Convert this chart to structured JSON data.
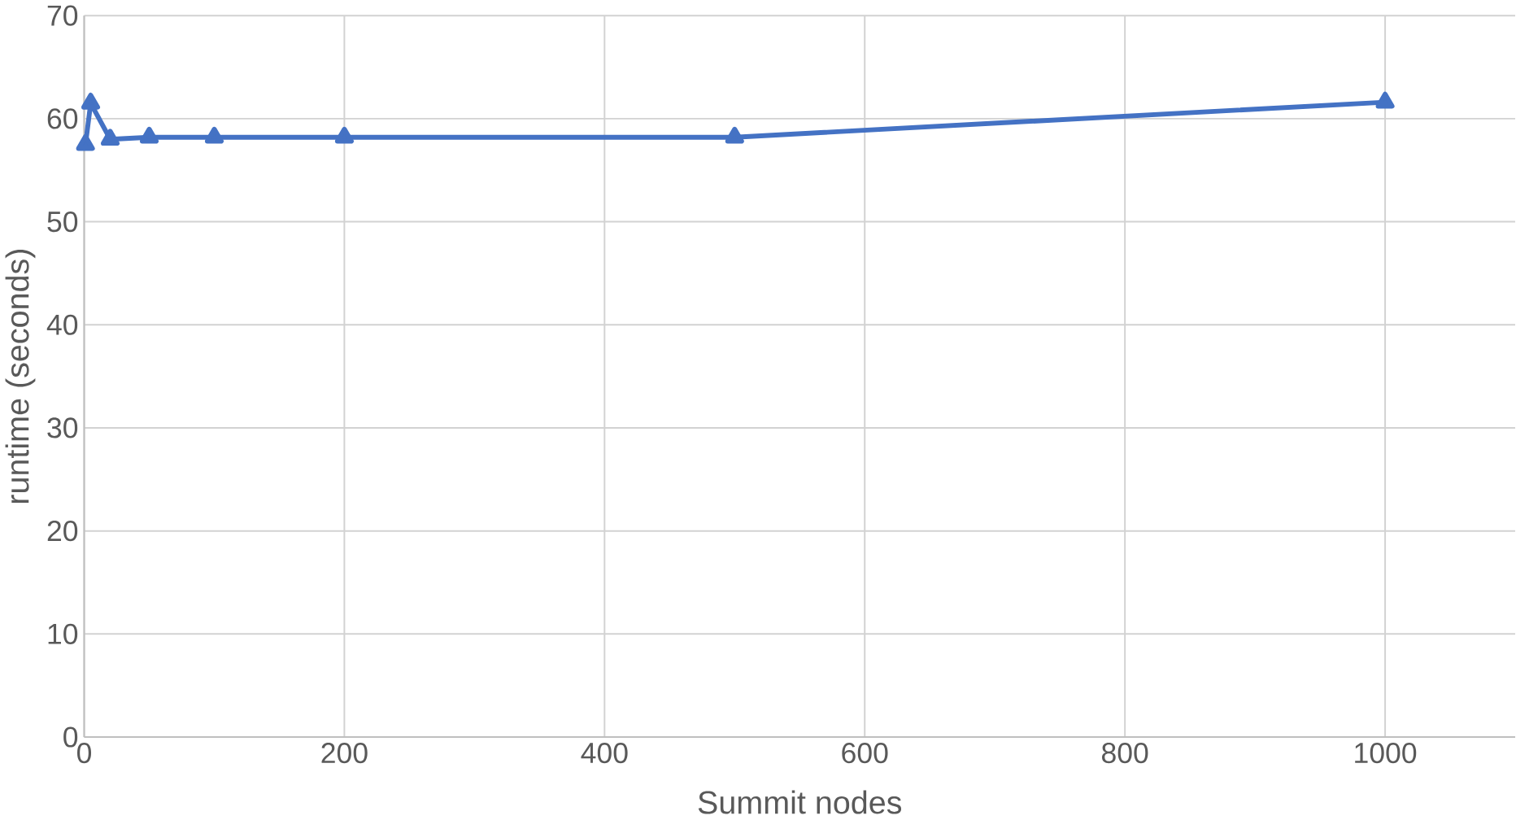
{
  "chart_data": {
    "type": "line",
    "xlabel": "Summit nodes",
    "ylabel": "runtime (seconds)",
    "x": [
      1,
      5,
      20,
      50,
      100,
      200,
      500,
      1000
    ],
    "series": [
      {
        "color": "#4472c4",
        "values": [
          57.5,
          61.5,
          58,
          58.2,
          58.2,
          58.2,
          58.2,
          61.6
        ]
      }
    ],
    "xlim": [
      0,
      1100
    ],
    "ylim": [
      0,
      70
    ],
    "xticks": [
      0,
      200,
      400,
      600,
      800,
      1000
    ],
    "yticks": [
      0,
      10,
      20,
      30,
      40,
      50,
      60,
      70
    ],
    "grid": true,
    "marker": "triangle",
    "line_style": "solid"
  }
}
